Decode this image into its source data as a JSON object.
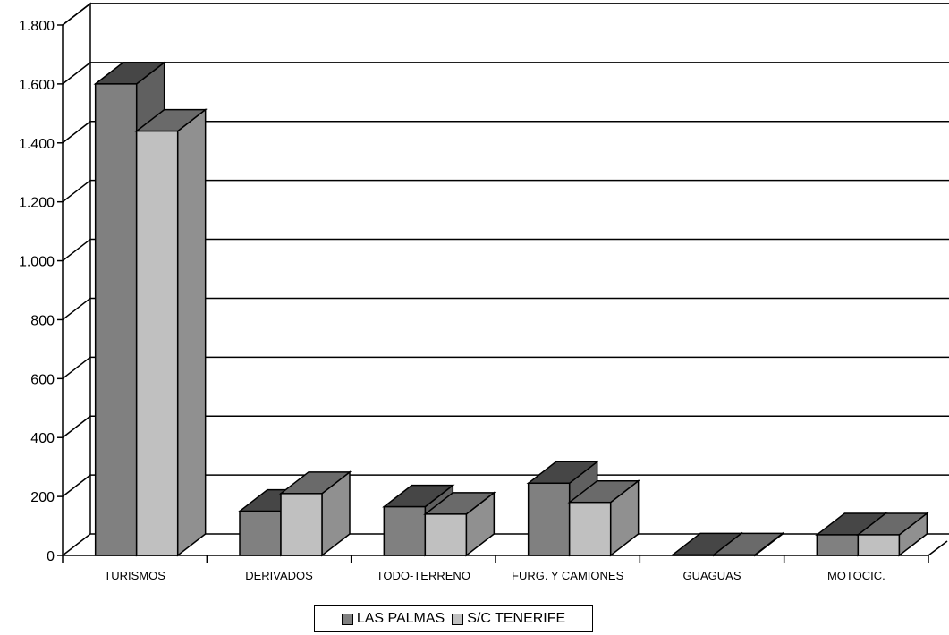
{
  "chart_data": {
    "type": "bar",
    "title": "",
    "xlabel": "",
    "ylabel": "",
    "categories": [
      "TURISMOS",
      "DERIVADOS",
      "TODO-TERRENO",
      "FURG. Y CAMIONES",
      "GUAGUAS",
      "MOTOCIC."
    ],
    "series": [
      {
        "name": "LAS PALMAS",
        "values": [
          1600,
          150,
          165,
          245,
          2,
          70
        ],
        "color": "#808080"
      },
      {
        "name": "S/C TENERIFE",
        "values": [
          1440,
          210,
          140,
          180,
          2,
          70
        ],
        "color": "#c0c0c0"
      }
    ],
    "ylim": [
      0,
      1800
    ],
    "yticks": [
      0,
      200,
      400,
      600,
      800,
      1000,
      1200,
      1400,
      1600,
      1800
    ],
    "ytick_labels": [
      "0",
      "200",
      "400",
      "600",
      "800",
      "1.000",
      "1.200",
      "1.400",
      "1.600",
      "1.800"
    ],
    "grid": true,
    "legend_position": "bottom-center",
    "three_d": true
  }
}
